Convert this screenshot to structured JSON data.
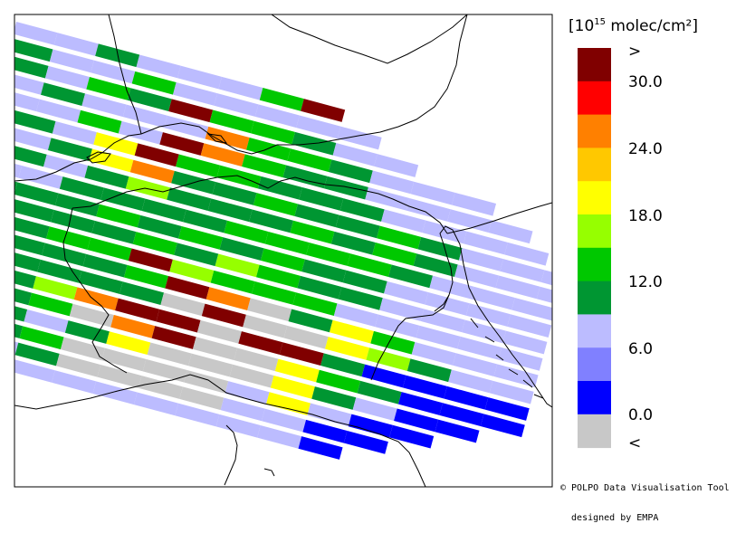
{
  "legend": {
    "title_prefix": "[10",
    "title_exp": "15",
    "title_suffix": " molec/cm²]",
    "ticks": [
      ">",
      "30.0",
      "24.0",
      "18.0",
      "12.0",
      "6.0",
      "0.0",
      "<"
    ],
    "bins": [
      {
        "name": "above-max",
        "color": "#800000"
      },
      {
        "name": "27-30",
        "color": "#ff0000"
      },
      {
        "name": "24-27",
        "color": "#ff8000"
      },
      {
        "name": "21-24",
        "color": "#ffc800"
      },
      {
        "name": "18-21",
        "color": "#ffff00"
      },
      {
        "name": "15-18",
        "color": "#96ff00"
      },
      {
        "name": "12-15",
        "color": "#00c800"
      },
      {
        "name": "9-12",
        "color": "#009632"
      },
      {
        "name": "6-9",
        "color": "#bcbcff"
      },
      {
        "name": "3-6",
        "color": "#8080ff"
      },
      {
        "name": "0-3",
        "color": "#0000ff"
      },
      {
        "name": "below-min",
        "color": "#c8c8c8"
      }
    ]
  },
  "credit": {
    "line1": "© POLPO Data Visualisation Tool",
    "line2": "  designed by EMPA"
  },
  "swath": {
    "rows": [
      [
        "L",
        "L",
        "M",
        "L",
        "L",
        "L",
        "G",
        "R"
      ],
      [
        "M",
        "L",
        "L",
        "G",
        "L",
        "L",
        "L",
        "L",
        "L"
      ],
      [
        "L",
        "M",
        "L",
        "G",
        "M",
        "R",
        "G",
        "G",
        "M",
        "L",
        "L"
      ],
      [
        "L",
        "L",
        "M",
        "L",
        "L",
        "L",
        "O",
        "G",
        "G",
        "M",
        "L",
        "L",
        "L"
      ],
      [
        "M",
        "L",
        "L",
        "G",
        "L",
        "R",
        "O",
        "G",
        "M",
        "M",
        "L",
        "L",
        "L",
        "L"
      ],
      [
        "B",
        "L",
        "M",
        "L",
        "Y",
        "R",
        "G",
        "G",
        "M",
        "M",
        "M",
        "L",
        "L",
        "L",
        "L"
      ],
      [
        "L",
        "M",
        "L",
        "M",
        "Y",
        "O",
        "M",
        "M",
        "G",
        "M",
        "M",
        "G",
        "M",
        "L",
        "L",
        "L"
      ],
      [
        "L",
        "L",
        "M",
        "L",
        "M",
        "V",
        "M",
        "M",
        "M",
        "G",
        "M",
        "G",
        "M",
        "L",
        "L",
        "L"
      ],
      [
        "L",
        "L",
        "L",
        "M",
        "M",
        "M",
        "M",
        "G",
        "G",
        "G",
        "G",
        "M",
        "L",
        "L",
        "L"
      ],
      [
        "M",
        "M",
        "M",
        "M",
        "G",
        "M",
        "G",
        "M",
        "G",
        "M",
        "M",
        "L",
        "L",
        "L",
        "L"
      ],
      [
        "L",
        "M",
        "M",
        "M",
        "M",
        "G",
        "M",
        "V",
        "G",
        "M",
        "M",
        "L",
        "L",
        "L",
        "L"
      ],
      [
        "M",
        "G",
        "M",
        "G",
        "G",
        "R",
        "V",
        "G",
        "G",
        "G",
        "L",
        "L",
        "L",
        "L",
        "L"
      ],
      [
        "M",
        "M",
        "M",
        "M",
        "M",
        "G",
        "R",
        "O",
        "X",
        "M",
        "Y",
        "G",
        "L",
        "L",
        "L"
      ],
      [
        "M",
        "M",
        "M",
        "M",
        "M",
        "M",
        "X",
        "R",
        "X",
        "X",
        "Y",
        "V",
        "M",
        "L",
        "L"
      ],
      [
        "M",
        "L",
        "M",
        "V",
        "O",
        "R",
        "R",
        "X",
        "R",
        "R",
        "M",
        "B",
        "B",
        "B",
        "B"
      ],
      [
        "L",
        "L",
        "M",
        "G",
        "X",
        "O",
        "R",
        "X",
        "X",
        "Y",
        "G",
        "M",
        "B",
        "B",
        "B"
      ],
      [
        "L",
        "L",
        "M",
        "L",
        "M",
        "Y",
        "X",
        "X",
        "X",
        "Y",
        "M",
        "L",
        "B",
        "B"
      ],
      [
        "L",
        "L",
        "M",
        "G",
        "X",
        "X",
        "X",
        "X",
        "L",
        "Y",
        "L",
        "B",
        "B"
      ],
      [
        "L",
        "L",
        "L",
        "M",
        "X",
        "X",
        "X",
        "X",
        "L",
        "L",
        "B",
        "B"
      ],
      [
        "L",
        "L",
        "L",
        "L",
        "L",
        "L",
        "L",
        "L",
        "L",
        "L",
        "B"
      ]
    ]
  }
}
